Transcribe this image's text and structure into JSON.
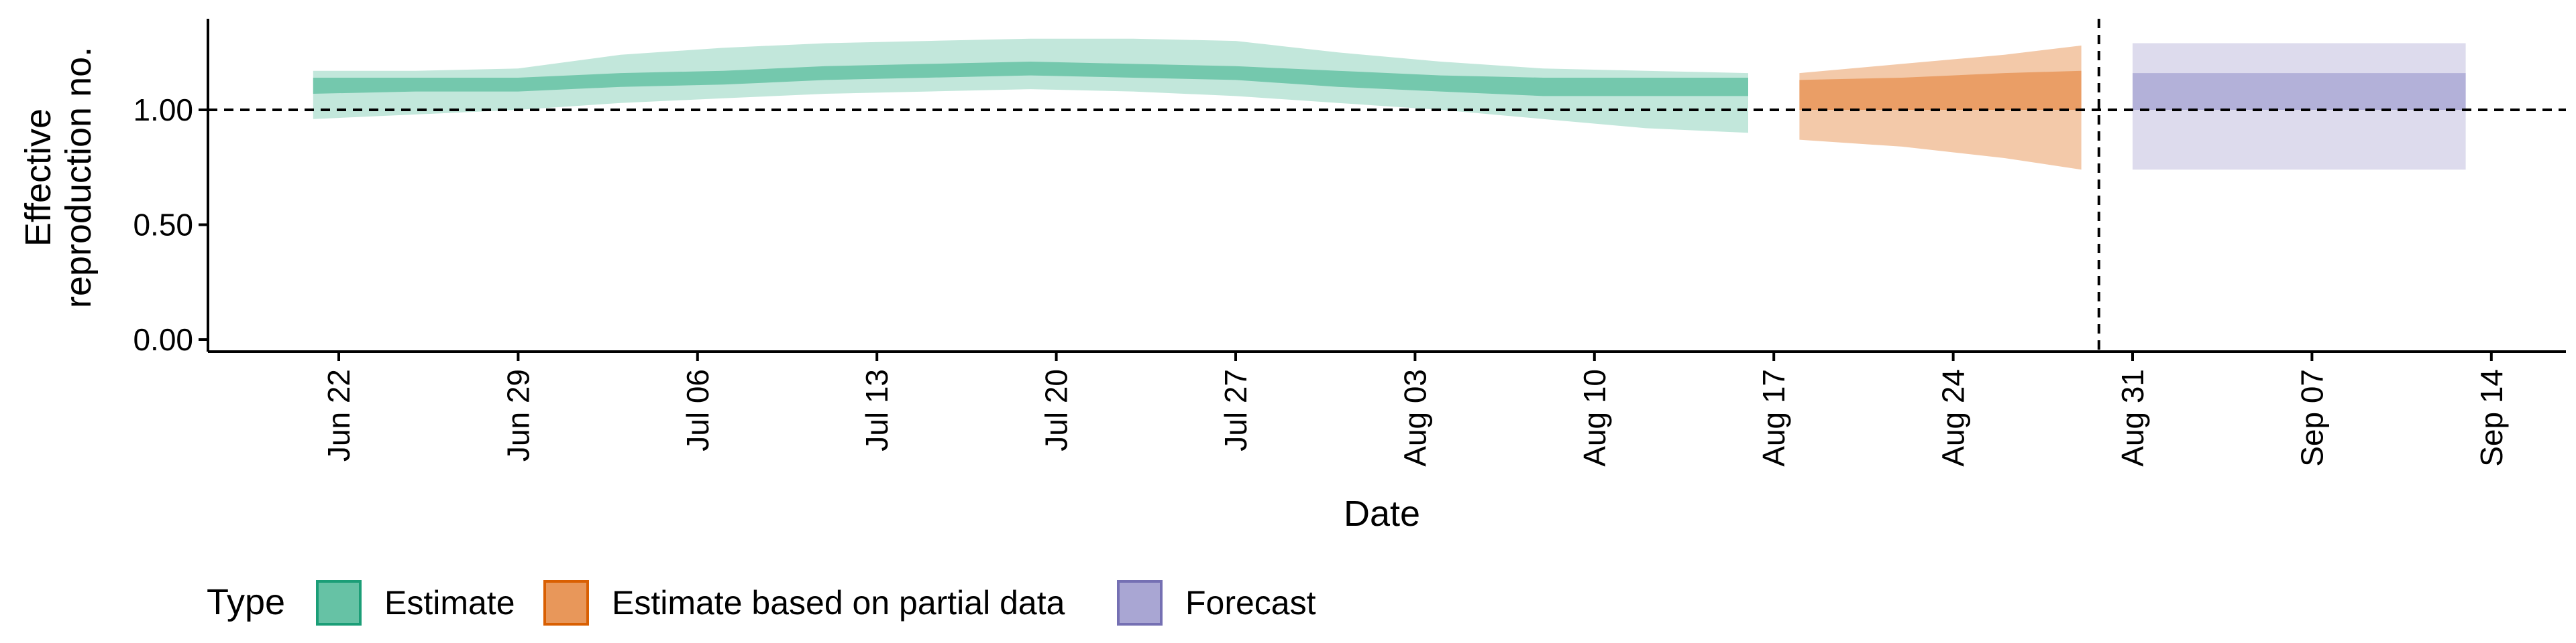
{
  "chart_data": {
    "type": "area",
    "xlabel": "Date",
    "ylabel_lines": [
      "Effective",
      "reproduction no."
    ],
    "ylim": [
      0,
      1.4
    ],
    "y_ticks": [
      {
        "value": 0,
        "label": "0.00"
      },
      {
        "value": 0.5,
        "label": "0.50"
      },
      {
        "value": 1,
        "label": "1.00"
      }
    ],
    "x_ticks": [
      "Jun 22",
      "Jun 29",
      "Jul 06",
      "Jul 13",
      "Jul 20",
      "Jul 27",
      "Aug 03",
      "Aug 10",
      "Aug 17",
      "Aug 24",
      "Aug 31",
      "Sep 07",
      "Sep 14"
    ],
    "xlim": [
      "2020-06-21",
      "2020-09-17"
    ],
    "reference_line_y": 1,
    "forecast_start_date": "2020-08-30",
    "legend": {
      "title": "Type",
      "placement": "bottom-left",
      "items": [
        {
          "label": "Estimate",
          "fill": "#66c2a5",
          "border": "#1b9e77"
        },
        {
          "label": "Estimate based on partial data",
          "fill": "#e8975a",
          "border": "#d95f02"
        },
        {
          "label": "Forecast",
          "fill": "#a9a6d3",
          "border": "#7570b3"
        }
      ]
    },
    "series": [
      {
        "name": "Estimate",
        "outer_color": "#66c2a5",
        "inner_color": "#66c2a5",
        "points": [
          {
            "date": "2020-06-21",
            "outer_low": 0.96,
            "inner_low": 1.07,
            "inner_high": 1.14,
            "outer_high": 1.17
          },
          {
            "date": "2020-06-25",
            "outer_low": 0.98,
            "inner_low": 1.08,
            "inner_high": 1.14,
            "outer_high": 1.17
          },
          {
            "date": "2020-06-29",
            "outer_low": 1.0,
            "inner_low": 1.08,
            "inner_high": 1.14,
            "outer_high": 1.18
          },
          {
            "date": "2020-07-03",
            "outer_low": 1.03,
            "inner_low": 1.1,
            "inner_high": 1.16,
            "outer_high": 1.24
          },
          {
            "date": "2020-07-07",
            "outer_low": 1.05,
            "inner_low": 1.11,
            "inner_high": 1.17,
            "outer_high": 1.27
          },
          {
            "date": "2020-07-11",
            "outer_low": 1.07,
            "inner_low": 1.13,
            "inner_high": 1.19,
            "outer_high": 1.29
          },
          {
            "date": "2020-07-15",
            "outer_low": 1.08,
            "inner_low": 1.14,
            "inner_high": 1.2,
            "outer_high": 1.3
          },
          {
            "date": "2020-07-19",
            "outer_low": 1.09,
            "inner_low": 1.15,
            "inner_high": 1.21,
            "outer_high": 1.31
          },
          {
            "date": "2020-07-23",
            "outer_low": 1.08,
            "inner_low": 1.14,
            "inner_high": 1.2,
            "outer_high": 1.31
          },
          {
            "date": "2020-07-27",
            "outer_low": 1.06,
            "inner_low": 1.13,
            "inner_high": 1.19,
            "outer_high": 1.3
          },
          {
            "date": "2020-07-31",
            "outer_low": 1.03,
            "inner_low": 1.1,
            "inner_high": 1.17,
            "outer_high": 1.25
          },
          {
            "date": "2020-08-04",
            "outer_low": 1.0,
            "inner_low": 1.08,
            "inner_high": 1.15,
            "outer_high": 1.21
          },
          {
            "date": "2020-08-08",
            "outer_low": 0.96,
            "inner_low": 1.06,
            "inner_high": 1.14,
            "outer_high": 1.18
          },
          {
            "date": "2020-08-12",
            "outer_low": 0.92,
            "inner_low": 1.06,
            "inner_high": 1.14,
            "outer_high": 1.17
          },
          {
            "date": "2020-08-16",
            "outer_low": 0.9,
            "inner_low": 1.06,
            "inner_high": 1.14,
            "outer_high": 1.16
          }
        ]
      },
      {
        "name": "Estimate based on partial data",
        "outer_color": "#f2c3a0",
        "inner_color": "#e8975a",
        "points": [
          {
            "date": "2020-08-18",
            "outer_low": 0.87,
            "inner_low": 1.0,
            "inner_high": 1.13,
            "outer_high": 1.16
          },
          {
            "date": "2020-08-22",
            "outer_low": 0.84,
            "inner_low": 1.0,
            "inner_high": 1.14,
            "outer_high": 1.2
          },
          {
            "date": "2020-08-26",
            "outer_low": 0.79,
            "inner_low": 1.0,
            "inner_high": 1.16,
            "outer_high": 1.24
          },
          {
            "date": "2020-08-29",
            "outer_low": 0.74,
            "inner_low": 1.0,
            "inner_high": 1.17,
            "outer_high": 1.28
          }
        ]
      },
      {
        "name": "Forecast",
        "outer_color": "#a9a6d3",
        "inner_color": "#a9a6d3",
        "points": [
          {
            "date": "2020-08-31",
            "outer_low": 0.74,
            "inner_low": 1.0,
            "inner_high": 1.16,
            "outer_high": 1.29
          },
          {
            "date": "2020-09-13",
            "outer_low": 0.74,
            "inner_low": 1.0,
            "inner_high": 1.16,
            "outer_high": 1.29
          }
        ]
      }
    ]
  }
}
